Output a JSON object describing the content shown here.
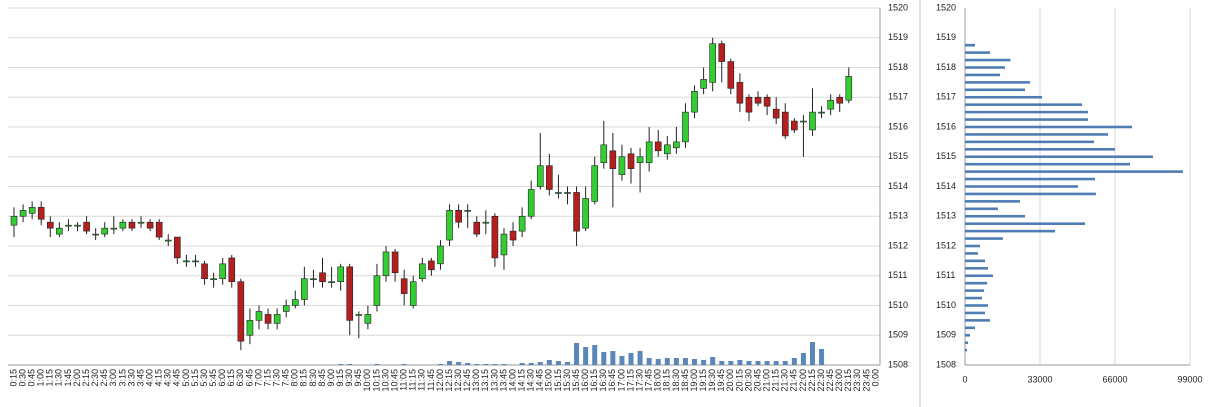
{
  "chart_data": [
    {
      "type": "candlestick",
      "categories": [
        "0:15",
        "0:30",
        "0:45",
        "1:00",
        "1:15",
        "1:30",
        "1:45",
        "2:00",
        "2:15",
        "2:30",
        "2:45",
        "3:00",
        "3:15",
        "3:30",
        "3:45",
        "4:00",
        "4:15",
        "4:30",
        "4:45",
        "5:00",
        "5:15",
        "5:30",
        "5:45",
        "6:00",
        "6:15",
        "6:30",
        "6:45",
        "7:00",
        "7:15",
        "7:30",
        "7:45",
        "8:00",
        "8:15",
        "8:30",
        "8:45",
        "9:00",
        "9:15",
        "9:30",
        "9:45",
        "10:00",
        "10:15",
        "10:30",
        "10:45",
        "11:00",
        "11:15",
        "11:30",
        "11:45",
        "12:00",
        "12:15",
        "12:30",
        "12:45",
        "13:00",
        "13:15",
        "13:30",
        "13:45",
        "14:00",
        "14:15",
        "14:30",
        "14:45",
        "15:00",
        "15:15",
        "15:30",
        "15:45",
        "16:00",
        "16:15",
        "16:30",
        "16:45",
        "17:00",
        "17:15",
        "17:30",
        "17:45",
        "18:00",
        "18:15",
        "18:30",
        "18:45",
        "19:00",
        "19:15",
        "19:30",
        "19:45",
        "20:00",
        "20:15",
        "20:30",
        "20:45",
        "21:00",
        "21:15",
        "21:30",
        "21:45",
        "22:00",
        "22:15",
        "22:30",
        "22:45",
        "23:00",
        "23:15",
        "23:30",
        "23:45",
        "0:00"
      ],
      "open": [
        1512.7,
        1513.0,
        1513.1,
        1513.3,
        1512.8,
        1512.4,
        1512.7,
        1512.7,
        1512.8,
        1512.4,
        1512.4,
        1512.6,
        1512.6,
        1512.8,
        1512.8,
        1512.8,
        1512.8,
        1512.2,
        1512.3,
        1511.5,
        1511.5,
        1511.4,
        1510.9,
        1510.9,
        1511.6,
        1510.8,
        1509.0,
        1509.5,
        1509.7,
        1509.4,
        1509.8,
        1510.0,
        1510.2,
        1510.9,
        1511.1,
        1510.8,
        1510.8,
        1511.3,
        1509.7,
        1509.4,
        1510.0,
        1511.0,
        1511.8,
        1510.9,
        1510.0,
        1510.9,
        1511.5,
        1511.4,
        1512.2,
        1513.2,
        1513.2,
        1512.8,
        1512.8,
        1513.0,
        1511.7,
        1512.5,
        1512.5,
        1513.0,
        1514.0,
        1514.7,
        1513.8,
        1513.8,
        1513.8,
        1512.6,
        1513.5,
        1514.8,
        1515.2,
        1514.4,
        1515.1,
        1514.8,
        1514.8,
        1515.5,
        1515.1,
        1515.3,
        1515.5,
        1516.5,
        1517.3,
        1517.5,
        1518.8,
        1518.2,
        1517.5,
        1517.0,
        1517.0,
        1517.0,
        1516.6,
        1516.5,
        1516.2,
        1516.2,
        1515.9,
        1516.5,
        1516.6,
        1517.0,
        1516.9,
        null,
        null,
        null
      ],
      "high": [
        1513.3,
        1513.4,
        1513.5,
        1513.5,
        1513.0,
        1512.8,
        1512.9,
        1512.8,
        1513.0,
        1512.6,
        1512.8,
        1513.0,
        1512.9,
        1512.9,
        1513.0,
        1512.9,
        1512.9,
        1512.4,
        1512.3,
        1511.7,
        1511.7,
        1511.5,
        1511.1,
        1511.6,
        1511.7,
        1510.9,
        1509.9,
        1510.0,
        1509.9,
        1509.9,
        1510.2,
        1510.5,
        1511.3,
        1511.2,
        1511.6,
        1511.3,
        1511.4,
        1511.4,
        1509.8,
        1510.0,
        1511.4,
        1512.0,
        1511.9,
        1511.2,
        1511.0,
        1511.6,
        1511.6,
        1512.2,
        1513.4,
        1513.4,
        1513.4,
        1513.0,
        1513.2,
        1513.1,
        1512.6,
        1512.8,
        1513.3,
        1514.2,
        1515.8,
        1515.1,
        1514.4,
        1514.0,
        1514.0,
        1514.0,
        1515.0,
        1516.2,
        1515.8,
        1515.4,
        1515.3,
        1515.3,
        1516.0,
        1515.9,
        1515.7,
        1516.0,
        1516.8,
        1517.4,
        1518.0,
        1519.0,
        1518.9,
        1518.3,
        1517.8,
        1517.1,
        1517.2,
        1517.1,
        1517.0,
        1516.8,
        1516.3,
        1516.4,
        1517.3,
        1516.7,
        1517.1,
        1517.1,
        1518.0,
        null,
        null,
        null
      ],
      "low": [
        1512.3,
        1512.8,
        1512.9,
        1512.7,
        1512.3,
        1512.3,
        1512.5,
        1512.5,
        1512.4,
        1512.2,
        1512.3,
        1512.4,
        1512.5,
        1512.5,
        1512.6,
        1512.5,
        1512.2,
        1512.0,
        1511.4,
        1511.3,
        1511.3,
        1510.7,
        1510.6,
        1510.7,
        1510.6,
        1508.5,
        1508.7,
        1509.2,
        1509.2,
        1509.2,
        1509.6,
        1509.9,
        1510.0,
        1510.6,
        1510.6,
        1510.6,
        1510.5,
        1509.0,
        1508.9,
        1509.2,
        1509.8,
        1510.8,
        1510.8,
        1510.0,
        1509.9,
        1510.8,
        1511.0,
        1511.2,
        1512.0,
        1512.6,
        1512.6,
        1512.3,
        1512.4,
        1511.3,
        1511.2,
        1512.0,
        1512.3,
        1512.9,
        1513.9,
        1513.7,
        1513.6,
        1513.4,
        1512.0,
        1512.5,
        1513.4,
        1514.6,
        1513.3,
        1514.2,
        1514.1,
        1513.8,
        1514.5,
        1515.0,
        1514.9,
        1515.1,
        1515.3,
        1516.3,
        1517.1,
        1517.2,
        1517.5,
        1517.1,
        1516.5,
        1516.2,
        1516.7,
        1516.4,
        1516.1,
        1515.6,
        1515.8,
        1515.0,
        1515.7,
        1516.3,
        1516.4,
        1516.5,
        1516.8,
        null,
        null,
        null
      ],
      "close": [
        1513.0,
        1513.2,
        1513.3,
        1512.9,
        1512.6,
        1512.6,
        1512.7,
        1512.7,
        1512.5,
        1512.4,
        1512.6,
        1512.6,
        1512.8,
        1512.6,
        1512.8,
        1512.6,
        1512.3,
        1512.2,
        1511.6,
        1511.5,
        1511.5,
        1510.9,
        1510.9,
        1511.4,
        1510.8,
        1508.8,
        1509.5,
        1509.8,
        1509.4,
        1509.7,
        1510.0,
        1510.2,
        1510.9,
        1510.9,
        1510.8,
        1510.8,
        1511.3,
        1509.5,
        1509.7,
        1509.7,
        1511.0,
        1511.8,
        1511.1,
        1510.4,
        1510.8,
        1511.4,
        1511.2,
        1512.0,
        1513.2,
        1512.8,
        1513.2,
        1512.4,
        1512.8,
        1511.6,
        1512.4,
        1512.2,
        1513.0,
        1513.9,
        1514.7,
        1513.9,
        1513.8,
        1513.8,
        1512.5,
        1513.6,
        1514.7,
        1515.4,
        1514.6,
        1515.0,
        1514.6,
        1515.0,
        1515.5,
        1515.2,
        1515.4,
        1515.5,
        1516.5,
        1517.2,
        1517.6,
        1518.8,
        1518.2,
        1517.3,
        1516.8,
        1516.5,
        1516.8,
        1516.7,
        1516.3,
        1515.7,
        1515.9,
        1516.2,
        1516.5,
        1516.5,
        1516.9,
        1516.8,
        1517.7,
        null,
        null,
        null
      ],
      "volume": [
        0,
        0,
        0,
        0,
        0,
        0,
        0,
        0,
        0,
        0,
        0,
        0,
        0,
        0,
        0,
        0,
        0,
        0,
        0,
        0,
        0,
        0,
        0,
        0,
        0,
        0,
        0,
        0,
        0,
        0,
        0,
        0,
        0,
        0,
        0,
        0,
        1,
        1,
        0,
        0,
        1,
        0,
        0,
        1,
        0,
        0,
        0,
        1,
        4,
        3,
        2,
        1,
        1,
        1,
        1,
        0,
        2,
        2,
        3,
        5,
        4,
        3,
        22,
        18,
        20,
        13,
        14,
        9,
        12,
        14,
        7,
        6,
        7,
        7,
        7,
        6,
        5,
        8,
        4,
        4,
        5,
        4,
        4,
        4,
        4,
        4,
        7,
        12,
        23,
        16,
        0,
        0,
        0,
        0,
        0,
        0
      ],
      "ylim": [
        1508,
        1520
      ],
      "yticks": [
        1508,
        1509,
        1510,
        1511,
        1512,
        1513,
        1514,
        1515,
        1516,
        1517,
        1518,
        1519,
        1520
      ],
      "grid": true,
      "up_color": "#33cc33",
      "down_color": "#b51f1f",
      "volume_color": "#5b86b8"
    },
    {
      "type": "bar",
      "orientation": "horizontal",
      "y": [
        1508.5,
        1508.75,
        1509,
        1509.25,
        1509.5,
        1509.75,
        1510,
        1510.25,
        1510.5,
        1510.75,
        1511,
        1511.25,
        1511.5,
        1511.75,
        1512,
        1512.25,
        1512.5,
        1512.75,
        1513,
        1513.25,
        1513.5,
        1513.75,
        1514,
        1514.25,
        1514.5,
        1514.75,
        1515,
        1515.25,
        1515.5,
        1515.75,
        1516,
        1516.25,
        1516.5,
        1516.75,
        1517,
        1517.25,
        1517.5,
        1517.75,
        1518,
        1518.25,
        1518.5,
        1518.75
      ],
      "values": [
        900,
        1300,
        2200,
        4400,
        11000,
        8800,
        10100,
        7500,
        8400,
        9700,
        12300,
        10100,
        8800,
        5700,
        6600,
        16700,
        39600,
        52800,
        26400,
        14500,
        24200,
        57600,
        49700,
        57200,
        95900,
        72600,
        82700,
        66000,
        56800,
        62900,
        73500,
        54100,
        54100,
        51500,
        33900,
        26400,
        28600,
        15400,
        17600,
        20000,
        11000,
        4400
      ],
      "ylim": [
        1508,
        1520
      ],
      "yticks": [
        1508,
        1509,
        1510,
        1511,
        1512,
        1513,
        1514,
        1515,
        1516,
        1517,
        1518,
        1519,
        1520
      ],
      "xlim": [
        0,
        99000
      ],
      "xticks": [
        0,
        33000,
        66000,
        99000
      ],
      "grid": true,
      "color": "#4f7db3"
    }
  ]
}
